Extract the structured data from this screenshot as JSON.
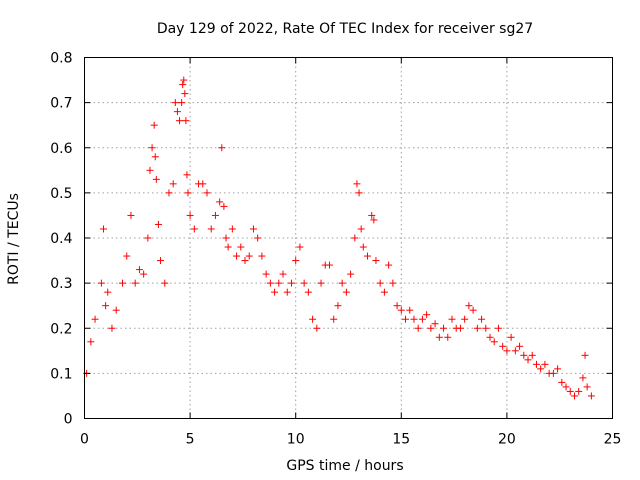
{
  "chart_data": {
    "type": "scatter",
    "title": "Day 129 of 2022, Rate Of TEC Index for receiver sg27",
    "xlabel": "GPS time / hours",
    "ylabel": "ROTI / TECUs",
    "xlim": [
      0,
      25
    ],
    "ylim": [
      0,
      0.8
    ],
    "xticks": [
      0,
      5,
      10,
      15,
      20,
      25
    ],
    "xtick_labels": [
      "0",
      "5",
      "10",
      "15",
      "20",
      "25"
    ],
    "yticks": [
      0,
      0.1,
      0.2,
      0.3,
      0.4,
      0.5,
      0.6,
      0.7,
      0.8
    ],
    "ytick_labels": [
      "0",
      "0.1",
      "0.2",
      "0.3",
      "0.4",
      "0.5",
      "0.6",
      "0.7",
      "0.8"
    ],
    "grid": true,
    "marker": "+",
    "color": "#ff0000",
    "series": [
      {
        "name": "ROTI",
        "x": [
          0.1,
          0.3,
          0.5,
          0.8,
          0.9,
          1.0,
          1.1,
          1.3,
          1.5,
          1.8,
          2.0,
          2.2,
          2.4,
          2.6,
          2.8,
          3.0,
          3.1,
          3.2,
          3.3,
          3.35,
          3.4,
          3.5,
          3.6,
          3.8,
          4.0,
          4.2,
          4.3,
          4.4,
          4.5,
          4.6,
          4.65,
          4.7,
          4.75,
          4.8,
          4.85,
          4.9,
          5.0,
          5.2,
          5.4,
          5.6,
          5.8,
          6.0,
          6.2,
          6.4,
          6.5,
          6.6,
          6.7,
          6.8,
          7.0,
          7.2,
          7.4,
          7.6,
          7.8,
          8.0,
          8.2,
          8.4,
          8.6,
          8.8,
          9.0,
          9.2,
          9.4,
          9.6,
          9.8,
          10.0,
          10.2,
          10.4,
          10.6,
          10.8,
          11.0,
          11.2,
          11.4,
          11.6,
          11.8,
          12.0,
          12.2,
          12.4,
          12.6,
          12.8,
          12.9,
          13.0,
          13.1,
          13.2,
          13.4,
          13.6,
          13.7,
          13.8,
          14.0,
          14.2,
          14.4,
          14.6,
          14.8,
          15.0,
          15.2,
          15.4,
          15.6,
          15.8,
          16.0,
          16.2,
          16.4,
          16.6,
          16.8,
          17.0,
          17.2,
          17.4,
          17.6,
          17.8,
          18.0,
          18.2,
          18.4,
          18.6,
          18.8,
          19.0,
          19.2,
          19.4,
          19.6,
          19.8,
          20.0,
          20.2,
          20.4,
          20.6,
          20.8,
          21.0,
          21.2,
          21.4,
          21.6,
          21.8,
          22.0,
          22.2,
          22.4,
          22.6,
          22.8,
          23.0,
          23.2,
          23.4,
          23.6,
          23.7,
          23.8,
          24.0
        ],
        "y": [
          0.1,
          0.17,
          0.22,
          0.3,
          0.42,
          0.25,
          0.28,
          0.2,
          0.24,
          0.3,
          0.36,
          0.45,
          0.3,
          0.33,
          0.32,
          0.4,
          0.55,
          0.6,
          0.65,
          0.58,
          0.53,
          0.43,
          0.35,
          0.3,
          0.5,
          0.52,
          0.7,
          0.68,
          0.66,
          0.7,
          0.74,
          0.75,
          0.72,
          0.66,
          0.54,
          0.5,
          0.45,
          0.42,
          0.52,
          0.52,
          0.5,
          0.42,
          0.45,
          0.48,
          0.6,
          0.47,
          0.4,
          0.38,
          0.42,
          0.36,
          0.38,
          0.35,
          0.36,
          0.42,
          0.4,
          0.36,
          0.32,
          0.3,
          0.28,
          0.3,
          0.32,
          0.28,
          0.3,
          0.35,
          0.38,
          0.3,
          0.28,
          0.22,
          0.2,
          0.3,
          0.34,
          0.34,
          0.22,
          0.25,
          0.3,
          0.28,
          0.32,
          0.4,
          0.52,
          0.5,
          0.42,
          0.38,
          0.36,
          0.45,
          0.44,
          0.35,
          0.3,
          0.28,
          0.34,
          0.3,
          0.25,
          0.24,
          0.22,
          0.24,
          0.22,
          0.2,
          0.22,
          0.23,
          0.2,
          0.21,
          0.18,
          0.2,
          0.18,
          0.22,
          0.2,
          0.2,
          0.22,
          0.25,
          0.24,
          0.2,
          0.22,
          0.2,
          0.18,
          0.17,
          0.2,
          0.16,
          0.15,
          0.18,
          0.15,
          0.16,
          0.14,
          0.13,
          0.14,
          0.12,
          0.11,
          0.12,
          0.1,
          0.1,
          0.11,
          0.08,
          0.07,
          0.06,
          0.05,
          0.06,
          0.09,
          0.14,
          0.07,
          0.05
        ]
      }
    ]
  }
}
